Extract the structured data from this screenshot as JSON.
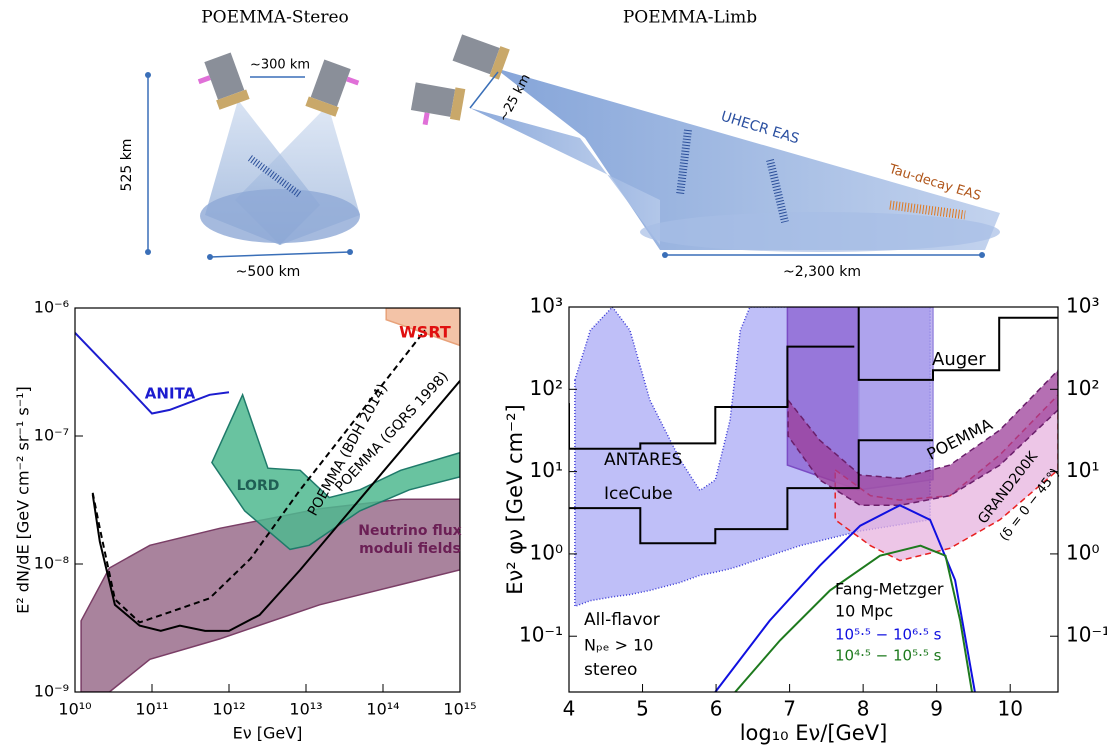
{
  "diagram": {
    "stereo_title": "POEMMA-Stereo",
    "limb_title": "POEMMA-Limb",
    "separation": "~300 km",
    "altitude": "525 km",
    "stereo_footprint": "~500 km",
    "limb_separation": "~25 km",
    "uhecr": "UHECR EAS",
    "tau": "Tau-decay EAS",
    "limb_footprint": "~2,300 km"
  },
  "chart_data": [
    {
      "type": "line",
      "x_label": "Eν [GeV]",
      "y_label": "E² dN/dE [GeV cm⁻² sr⁻¹ s⁻¹]",
      "x_scale": "log",
      "y_scale": "log",
      "xlim": [
        10000000000.0,
        1000000000000000.0
      ],
      "ylim": [
        1e-09,
        1e-06
      ],
      "xticks": [
        {
          "value": 10000000000.0,
          "label": "10¹⁰"
        },
        {
          "value": 100000000000.0,
          "label": "10¹¹"
        },
        {
          "value": 1000000000000.0,
          "label": "10¹²"
        },
        {
          "value": 10000000000000.0,
          "label": "10¹³"
        },
        {
          "value": 100000000000000.0,
          "label": "10¹⁴"
        },
        {
          "value": 1000000000000000.0,
          "label": "10¹⁵"
        }
      ],
      "yticks": [
        {
          "value": 1e-09,
          "label": "10⁻⁹"
        },
        {
          "value": 1e-08,
          "label": "10⁻⁸"
        },
        {
          "value": 1e-07,
          "label": "10⁻⁷"
        },
        {
          "value": 1e-06,
          "label": "10⁻⁶"
        }
      ],
      "annotations": [
        "ANITA",
        "LORD",
        "WSRT",
        "Neutrino flux",
        "moduli fields",
        "POEMMA (BDH 2014)",
        "POEMMA (GQRS 1998)"
      ],
      "series": [
        {
          "type": "band",
          "color": "#7a3e66",
          "fill": "#8c5a7c",
          "x": [
            12000000000.0,
            28000000000.0,
            94000000000.0,
            760000000000.0,
            15000000000000.0,
            170000000000000.0,
            1000000000000000.0
          ],
          "upper": [
            3.6e-09,
            9.3e-09,
            1.4e-08,
            1.9e-08,
            2.7e-08,
            3.2e-08,
            3.2e-08
          ],
          "lower": [
            1e-09,
            1e-09,
            1.8e-09,
            2.6e-09,
            4.8e-09,
            6.9e-09,
            9e-09
          ]
        },
        {
          "type": "area",
          "color": "#1f7a6a",
          "fill": "#4fb88f",
          "x": [
            600000000000.0,
            1500000000000.0,
            3200000000000.0,
            8400000000000.0,
            20000000000000.0,
            50000000000000.0,
            170000000000000.0,
            1000000000000000.0,
            1000000000000000.0,
            220000000000000.0,
            50000000000000.0,
            11000000000000.0,
            6200000000000.0,
            1600000000000.0
          ],
          "values": [
            6.2e-08,
            2.1e-07,
            5.6e-08,
            5.4e-08,
            3.3e-08,
            3.8e-08,
            5.4e-08,
            7.4e-08,
            4.8e-08,
            3.8e-08,
            2.6e-08,
            1.4e-08,
            1.3e-08,
            2.6e-08
          ]
        },
        {
          "type": "area",
          "color": "#e8a27a",
          "fill": "#f1b898",
          "x": [
            110000000000000.0,
            1000000000000000.0,
            1000000000000000.0,
            110000000000000.0
          ],
          "values": [
            1e-06,
            1e-06,
            5.1e-07,
            8.1e-07
          ]
        },
        {
          "type": "line",
          "color": "#1c1ccf",
          "x": [
            10000000000.0,
            45000000000.0,
            100000000000.0,
            170000000000.0,
            560000000000.0,
            1000000000000.0
          ],
          "values": [
            6.4e-07,
            2.5e-07,
            1.5e-07,
            1.6e-07,
            2.1e-07,
            2.2e-07
          ]
        },
        {
          "type": "line",
          "color": "#000000",
          "dash": "6 4",
          "x": [
            17000000000.0,
            21000000000.0,
            33000000000.0,
            69000000000.0,
            170000000000.0,
            560000000000.0,
            1900000000000.0,
            8400000000000.0,
            350000000000000.0
          ],
          "values": [
            3.6e-08,
            1.9e-08,
            5.3e-09,
            3.5e-09,
            4.2e-09,
            5.4e-09,
            1.1e-08,
            3.8e-08,
            6.7e-07
          ]
        },
        {
          "type": "line",
          "color": "#000000",
          "x": [
            17000000000.0,
            21000000000.0,
            33000000000.0,
            69000000000.0,
            130000000000.0,
            230000000000.0,
            490000000000.0,
            1000000000000.0,
            2500000000000.0,
            8400000000000.0,
            50000000000000.0,
            1000000000000000.0
          ],
          "values": [
            3.5e-08,
            1.5e-08,
            4.8e-09,
            3.3e-09,
            3e-09,
            3.3e-09,
            3e-09,
            3e-09,
            4e-09,
            9e-09,
            3.2e-08,
            2.7e-07
          ]
        }
      ]
    },
    {
      "type": "line",
      "x_label": "log₁₀ Eν/[GeV]",
      "y_label": "Eν² φν [GeV cm⁻²]",
      "x_scale": "linear",
      "y_scale": "log",
      "xlim": [
        4,
        10.65
      ],
      "ylim": [
        0.021,
        1000
      ],
      "y2lim": [
        0.021,
        1000
      ],
      "xticks": [
        4,
        5,
        6,
        7,
        8,
        9,
        10
      ],
      "yticks": [
        {
          "value": 0.1,
          "label": "10⁻¹"
        },
        {
          "value": 1,
          "label": "10⁰"
        },
        {
          "value": 10,
          "label": "10¹"
        },
        {
          "value": 100,
          "label": "10²"
        },
        {
          "value": 1000,
          "label": "10³"
        }
      ],
      "y2ticks": [
        {
          "value": 0.1,
          "label": "10⁻¹"
        },
        {
          "value": 1,
          "label": "10⁰"
        },
        {
          "value": 10,
          "label": "10¹"
        },
        {
          "value": 100,
          "label": "10²"
        },
        {
          "value": 1000,
          "label": "10³"
        }
      ],
      "annotations": [
        "Auger",
        "ANTARES",
        "IceCube",
        "POEMMA",
        "GRAND200K",
        "(δ = 0 − 45°)",
        "Fang-Metzger",
        "10 Mpc",
        "10⁵·⁵ − 10⁶·⁵ s",
        "10⁴·⁵ − 10⁵·⁵ s",
        "All-flavor",
        "Nₚₑ > 10",
        "stereo"
      ],
      "series": [
        {
          "type": "band",
          "color": "#3b3bd6",
          "fill": "#aaaaf6",
          "dash": "1 2",
          "x": [
            4.08,
            4.29,
            4.59,
            4.83,
            5.1,
            5.51,
            5.78,
            5.99,
            6.19,
            6.33,
            6.46,
            7.14,
            7.96,
            8.91
          ],
          "upper": [
            130,
            520,
            1000,
            520,
            74,
            14,
            5.9,
            7.9,
            42,
            520,
            1000,
            1000,
            1000,
            1000
          ],
          "lower": [
            0.23,
            0.27,
            0.3,
            0.32,
            0.36,
            0.45,
            0.55,
            0.6,
            0.66,
            0.72,
            0.79,
            1.26,
            1.9,
            2.6
          ]
        },
        {
          "type": "band",
          "color": "#7b4cc4",
          "fill": "#8a5fd0",
          "x": [
            6.97,
            7.94
          ],
          "upper": [
            1000,
            1000
          ],
          "lower": [
            12,
            6
          ]
        },
        {
          "type": "band",
          "color": "#9a8ae0",
          "fill": "#a899ea",
          "x": [
            7.94,
            8.95
          ],
          "upper": [
            1000,
            1000
          ],
          "lower": [
            6,
            8
          ]
        },
        {
          "type": "band",
          "color": "#e82020",
          "fill": "#e7b3df",
          "dash": "6 4",
          "x": [
            7.62,
            8.1,
            8.5,
            9.18,
            9.86,
            10.65
          ],
          "upper": [
            10.5,
            5.1,
            4.5,
            5.1,
            16,
            85
          ],
          "lower": [
            2.6,
            1.26,
            0.83,
            1.17,
            2.6,
            10.5
          ]
        },
        {
          "type": "band",
          "color": "#6b1f6b",
          "fill": "#9c3f99",
          "dash": "6 4",
          "x": [
            6.98,
            7.41,
            7.96,
            8.5,
            9.18,
            9.86,
            10.65
          ],
          "upper": [
            74,
            24,
            9.1,
            8.3,
            12,
            32,
            170
          ],
          "lower": [
            27,
            7.9,
            3.9,
            3.9,
            5.1,
            12,
            56
          ]
        },
        {
          "type": "line",
          "color": "#000000",
          "x": [
            4.0,
            4.0,
            4.97,
            4.97,
            5.99,
            5.99,
            6.97,
            6.97,
            7.88
          ],
          "values": [
            68,
            19,
            19,
            22,
            22,
            61,
            61,
            330,
            330
          ]
        },
        {
          "type": "line",
          "color": "#000000",
          "x": [
            7.94,
            7.94,
            8.95,
            8.95,
            9.85,
            9.85,
            10.65
          ],
          "values": [
            1000,
            130,
            130,
            170,
            170,
            740,
            740
          ]
        },
        {
          "type": "line",
          "color": "#000000",
          "x": [
            4.0,
            4.97,
            4.97,
            5.99,
            5.99,
            6.97,
            6.97,
            7.94,
            7.94,
            8.95
          ],
          "values": [
            3.6,
            3.6,
            1.35,
            1.35,
            2.0,
            2.0,
            6.3,
            6.3,
            24,
            24
          ]
        },
        {
          "type": "line",
          "color": "#1010e0",
          "x": [
            5.99,
            6.73,
            7.41,
            7.96,
            8.5,
            8.91,
            9.25,
            9.52
          ],
          "values": [
            0.021,
            0.155,
            0.72,
            2.2,
            3.9,
            2.6,
            0.48,
            0.021
          ]
        },
        {
          "type": "line",
          "color": "#1e7a1e",
          "x": [
            6.26,
            6.87,
            7.55,
            8.23,
            8.78,
            9.12,
            9.32,
            9.48
          ],
          "values": [
            0.021,
            0.089,
            0.36,
            0.95,
            1.26,
            0.95,
            0.155,
            0.021
          ]
        }
      ]
    }
  ]
}
